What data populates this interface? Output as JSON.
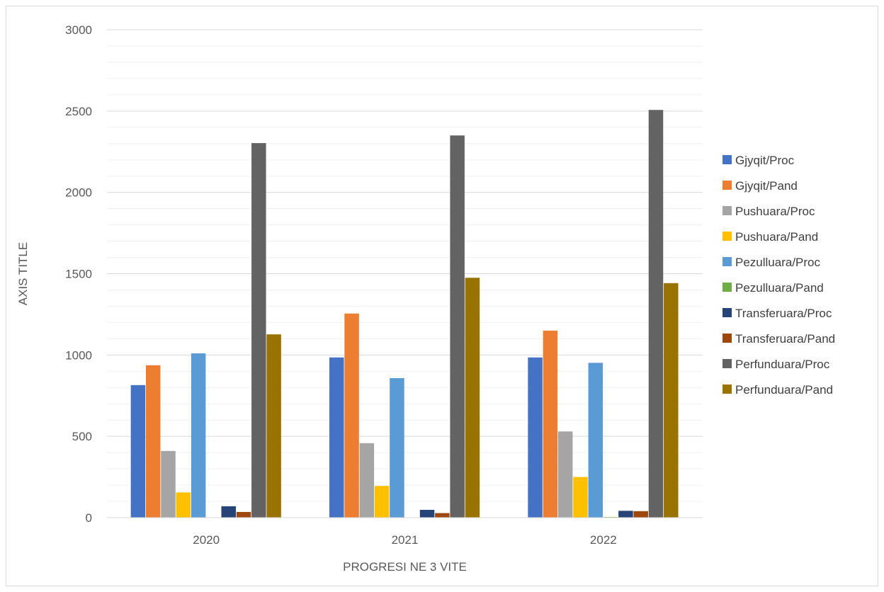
{
  "chart_data": {
    "type": "bar",
    "title": "",
    "xlabel": "PROGRESI NE 3 VITE",
    "ylabel": "AXIS TITLE",
    "ylim": [
      0,
      3000
    ],
    "yticks": [
      0,
      500,
      1000,
      1500,
      2000,
      2500,
      3000
    ],
    "grid": true,
    "legend_position": "right",
    "categories": [
      "2020",
      "2021",
      "2022"
    ],
    "series": [
      {
        "name": "Gjyqit/Proc",
        "color": "#4472C4",
        "values": [
          815,
          985,
          985
        ]
      },
      {
        "name": "Gjyqit/Pand",
        "color": "#ED7D31",
        "values": [
          937,
          1255,
          1150
        ]
      },
      {
        "name": "Pushuara/Proc",
        "color": "#A5A5A5",
        "values": [
          410,
          458,
          530
        ]
      },
      {
        "name": "Pushuara/Pand",
        "color": "#FFC000",
        "values": [
          155,
          195,
          250
        ]
      },
      {
        "name": "Pezulluara/Proc",
        "color": "#5B9BD5",
        "values": [
          1010,
          858,
          952
        ]
      },
      {
        "name": "Pezulluara/Pand",
        "color": "#70AD47",
        "values": [
          0,
          0,
          4
        ]
      },
      {
        "name": "Transferuara/Proc",
        "color": "#264478",
        "values": [
          70,
          48,
          42
        ]
      },
      {
        "name": "Transferuara/Pand",
        "color": "#9E480E",
        "values": [
          35,
          28,
          40
        ]
      },
      {
        "name": "Perfunduara/Proc",
        "color": "#636363",
        "values": [
          2303,
          2350,
          2507
        ]
      },
      {
        "name": "Perfunduara/Pand",
        "color": "#997300",
        "values": [
          1127,
          1475,
          1442
        ]
      }
    ]
  }
}
